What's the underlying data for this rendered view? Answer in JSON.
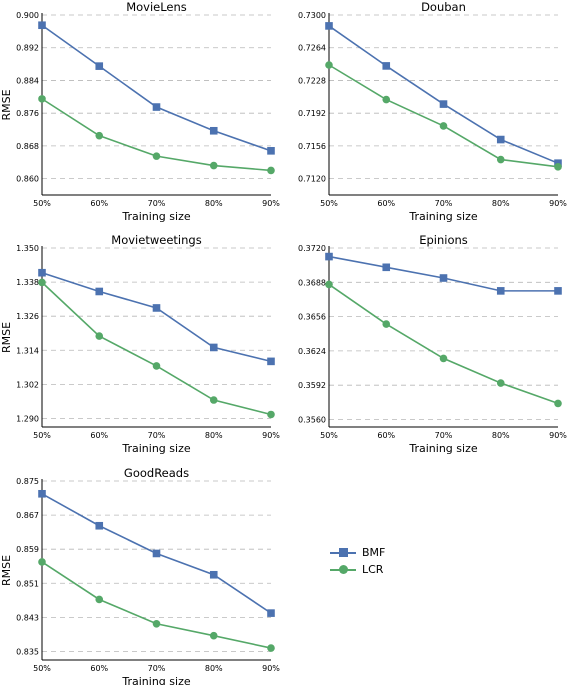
{
  "colors": {
    "BMF": "#4c72b0",
    "LCR": "#55a868",
    "grid": "#b8b8b8",
    "axis": "#000000"
  },
  "legend": {
    "entries": [
      {
        "label": "BMF",
        "marker": "square"
      },
      {
        "label": "LCR",
        "marker": "circle"
      }
    ]
  },
  "chart_data": [
    {
      "type": "line",
      "title": "MovieLens",
      "xlabel": "Training size",
      "ylabel": "RMSE",
      "categories": [
        "50%",
        "60%",
        "70%",
        "80%",
        "90%"
      ],
      "ylim": [
        0.856,
        0.9
      ],
      "yticks": [
        "0.860",
        "0.868",
        "0.876",
        "0.884",
        "0.892",
        "0.900"
      ],
      "grid": "horizontal-dashed",
      "series": [
        {
          "name": "BMF",
          "values": [
            0.8975,
            0.8875,
            0.8775,
            0.8717,
            0.8668
          ]
        },
        {
          "name": "LCR",
          "values": [
            0.8795,
            0.8705,
            0.8655,
            0.8632,
            0.862
          ]
        }
      ]
    },
    {
      "type": "line",
      "title": "Douban",
      "xlabel": "Training size",
      "ylabel": "",
      "categories": [
        "50%",
        "60%",
        "70%",
        "80%",
        "90%"
      ],
      "ylim": [
        0.7102,
        0.73
      ],
      "yticks": [
        "0.7120",
        "0.7156",
        "0.7192",
        "0.7228",
        "0.7264",
        "0.7300"
      ],
      "grid": "horizontal-dashed",
      "series": [
        {
          "name": "BMF",
          "values": [
            0.7288,
            0.7244,
            0.7202,
            0.7163,
            0.7137
          ]
        },
        {
          "name": "LCR",
          "values": [
            0.7245,
            0.7207,
            0.7178,
            0.7141,
            0.7133
          ]
        }
      ]
    },
    {
      "type": "line",
      "title": "Movietweetings",
      "xlabel": "Training size",
      "ylabel": "RMSE",
      "categories": [
        "50%",
        "60%",
        "70%",
        "80%",
        "90%"
      ],
      "ylim": [
        1.287,
        1.35
      ],
      "yticks": [
        "1.290",
        "1.302",
        "1.314",
        "1.326",
        "1.338",
        "1.350"
      ],
      "grid": "horizontal-dashed",
      "series": [
        {
          "name": "BMF",
          "values": [
            1.3413,
            1.3347,
            1.3289,
            1.315,
            1.3101
          ]
        },
        {
          "name": "LCR",
          "values": [
            1.3379,
            1.319,
            1.3085,
            1.2965,
            1.2914
          ]
        }
      ]
    },
    {
      "type": "line",
      "title": "Epinions",
      "xlabel": "Training size",
      "ylabel": "",
      "categories": [
        "50%",
        "60%",
        "70%",
        "80%",
        "90%"
      ],
      "ylim": [
        0.3553,
        0.372
      ],
      "yticks": [
        "0.3560",
        "0.3592",
        "0.3624",
        "0.3656",
        "0.3688",
        "0.3720"
      ],
      "grid": "horizontal-dashed",
      "series": [
        {
          "name": "BMF",
          "values": [
            0.3712,
            0.3702,
            0.3692,
            0.368,
            0.368
          ]
        },
        {
          "name": "LCR",
          "values": [
            0.3686,
            0.3649,
            0.3617,
            0.3594,
            0.3575
          ]
        }
      ]
    },
    {
      "type": "line",
      "title": "GoodReads",
      "xlabel": "Training size",
      "ylabel": "RMSE",
      "categories": [
        "50%",
        "60%",
        "70%",
        "80%",
        "90%"
      ],
      "ylim": [
        0.833,
        0.875
      ],
      "yticks": [
        "0.835",
        "0.843",
        "0.851",
        "0.859",
        "0.867",
        "0.875"
      ],
      "grid": "horizontal-dashed",
      "series": [
        {
          "name": "BMF",
          "values": [
            0.872,
            0.8645,
            0.858,
            0.853,
            0.844
          ]
        },
        {
          "name": "LCR",
          "values": [
            0.856,
            0.8472,
            0.8415,
            0.8387,
            0.8358
          ]
        }
      ]
    }
  ]
}
